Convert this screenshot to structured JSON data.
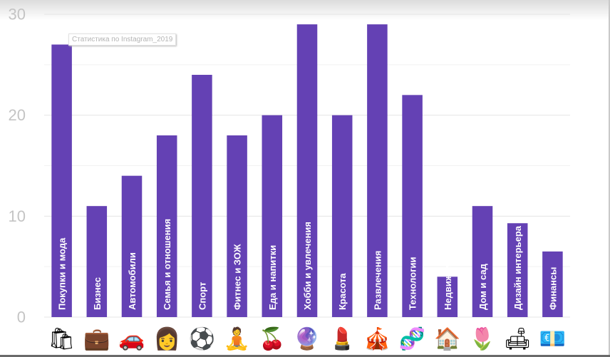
{
  "chart_data": {
    "type": "bar",
    "title": "Статистика по Instagram_2019",
    "xlabel": "",
    "ylabel": "",
    "ylim": [
      0,
      30
    ],
    "yticks": [
      0,
      10,
      20,
      30
    ],
    "grid": true,
    "bar_color": "#6441b4",
    "categories": [
      "Покупки и мода",
      "Бизнес",
      "Автомобили",
      "Семья и отношения",
      "Спорт",
      "Фитнес и ЗОЖ",
      "Еда и напитки",
      "Хобби и увлечения",
      "Красота",
      "Развлечения",
      "Технологии",
      "Недвижимость",
      "Дом и сад",
      "Дизайн интерьера",
      "Финансы"
    ],
    "values": [
      27,
      11,
      14,
      18,
      24,
      18,
      20,
      29,
      20,
      29,
      22,
      4,
      11,
      9.3,
      6.5
    ],
    "icons": [
      "🛍",
      "💼",
      "🚗",
      "👩",
      "⚽",
      "🧘",
      "🍒",
      "🔮",
      "💄",
      "🎪",
      "🧬",
      "🏠",
      "🌷",
      "🛋",
      "💶"
    ]
  }
}
